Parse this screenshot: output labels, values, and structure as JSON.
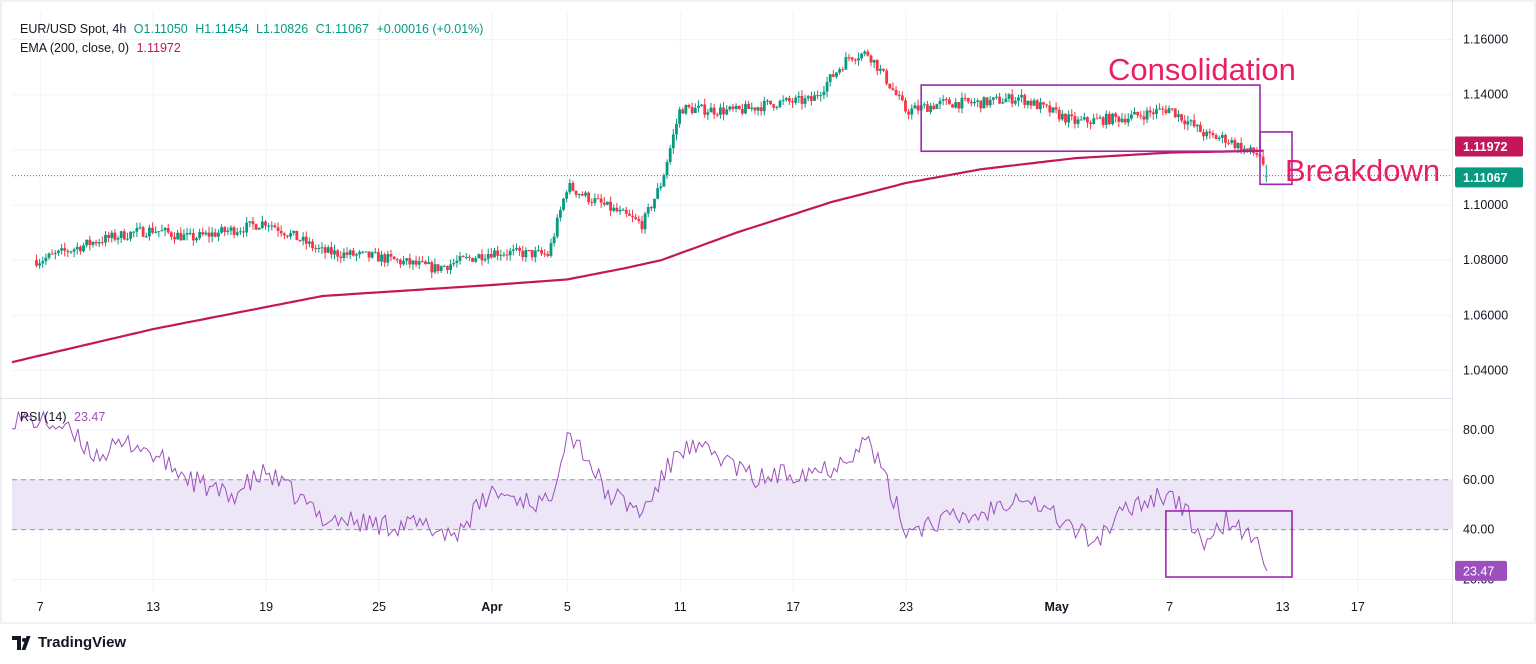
{
  "header": {
    "symbol": "EUR/USD Spot, 4h",
    "open": "O1.11050",
    "high": "H1.11454",
    "low": "L1.10826",
    "close": "C1.11067",
    "change": "+0.00016 (+0.01%)",
    "ema_label": "EMA (200, close, 0)",
    "ema_value": "1.11972",
    "rsi_label": "RSI (14)",
    "rsi_value": "23.47"
  },
  "brand": "TradingView",
  "colors": {
    "up": "#089981",
    "down": "#f23645",
    "ema": "#c2185b",
    "rsi": "#9c4fbd",
    "box": "#9c27b0",
    "annotation": "#e91e63",
    "rsi_band": "#ede6f7"
  },
  "annotations": {
    "consolidation": "Consolidation",
    "breakdown": "Breakdown"
  },
  "chart_data": [
    {
      "type": "candlestick",
      "timeframe": "4h",
      "price_axis": {
        "range": [
          1.03,
          1.17
        ],
        "ticks": [
          "1.16000",
          "1.14000",
          "1.12000",
          "1.10000",
          "1.08000",
          "1.06000",
          "1.04000"
        ],
        "tick_values": [
          1.16,
          1.14,
          1.12,
          1.1,
          1.08,
          1.06,
          1.04
        ]
      },
      "x_ticks": [
        "7",
        "13",
        "19",
        "25",
        "Apr",
        "5",
        "11",
        "17",
        "23",
        "May",
        "7",
        "13",
        "17"
      ],
      "x_tick_days": [
        0,
        6,
        12,
        18,
        24,
        28,
        34,
        40,
        46,
        54,
        60,
        66,
        70
      ],
      "last_bar_day": 65.2,
      "x_range_days": [
        -1.5,
        75
      ],
      "closes_keypoints": [
        [
          0,
          1.08
        ],
        [
          3,
          1.087
        ],
        [
          5,
          1.09
        ],
        [
          6,
          1.091
        ],
        [
          8,
          1.088
        ],
        [
          11,
          1.092
        ],
        [
          12,
          1.094
        ],
        [
          15,
          1.083
        ],
        [
          18,
          1.081
        ],
        [
          21,
          1.077
        ],
        [
          24,
          1.083
        ],
        [
          27,
          1.082
        ],
        [
          28,
          1.107
        ],
        [
          29,
          1.103
        ],
        [
          32,
          1.093
        ],
        [
          33,
          1.108
        ],
        [
          34,
          1.135
        ],
        [
          37,
          1.134
        ],
        [
          39,
          1.137
        ],
        [
          41,
          1.138
        ],
        [
          43,
          1.154
        ],
        [
          44,
          1.155
        ],
        [
          45,
          1.145
        ],
        [
          46,
          1.134
        ],
        [
          48,
          1.137
        ],
        [
          50,
          1.137
        ],
        [
          52,
          1.139
        ],
        [
          55,
          1.13
        ],
        [
          58,
          1.132
        ],
        [
          60,
          1.135
        ],
        [
          62,
          1.125
        ],
        [
          63,
          1.124
        ],
        [
          64,
          1.12
        ],
        [
          64.8,
          1.118
        ],
        [
          65.2,
          1.1107
        ]
      ],
      "last_price_label": "1.11067",
      "ema": {
        "name": "EMA (200, close, 0)",
        "keypoints": [
          [
            -1.5,
            1.043
          ],
          [
            6,
            1.055
          ],
          [
            15,
            1.067
          ],
          [
            24,
            1.071
          ],
          [
            28,
            1.073
          ],
          [
            31,
            1.077
          ],
          [
            33,
            1.08
          ],
          [
            37,
            1.09
          ],
          [
            42,
            1.101
          ],
          [
            46,
            1.108
          ],
          [
            50,
            1.113
          ],
          [
            55,
            1.117
          ],
          [
            60,
            1.119
          ],
          [
            65.2,
            1.11972
          ]
        ],
        "last_label": "1.11972"
      }
    },
    {
      "type": "line",
      "name": "RSI (14)",
      "y_range": [
        15,
        92
      ],
      "ticks": [
        "80.00",
        "60.00",
        "40.00",
        "20.00"
      ],
      "tick_values": [
        80,
        60,
        40,
        20
      ],
      "band": [
        40,
        60
      ],
      "keypoints": [
        [
          -1.5,
          85
        ],
        [
          1,
          82
        ],
        [
          3,
          70
        ],
        [
          5,
          75
        ],
        [
          8,
          60
        ],
        [
          10,
          53
        ],
        [
          12,
          63
        ],
        [
          15,
          45
        ],
        [
          18,
          42
        ],
        [
          20,
          42
        ],
        [
          22,
          38
        ],
        [
          24,
          55
        ],
        [
          27,
          50
        ],
        [
          28,
          80
        ],
        [
          29,
          70
        ],
        [
          30,
          55
        ],
        [
          32,
          47
        ],
        [
          34,
          73
        ],
        [
          36,
          70
        ],
        [
          38,
          60
        ],
        [
          40,
          63
        ],
        [
          42,
          65
        ],
        [
          44,
          76
        ],
        [
          46,
          40
        ],
        [
          48,
          44
        ],
        [
          50,
          46
        ],
        [
          52,
          55
        ],
        [
          54,
          45
        ],
        [
          56,
          35
        ],
        [
          58,
          50
        ],
        [
          60,
          55
        ],
        [
          61,
          45
        ],
        [
          62,
          33
        ],
        [
          63,
          44
        ],
        [
          64,
          38
        ],
        [
          64.6,
          35
        ],
        [
          65.2,
          23.47
        ]
      ],
      "last_label": "23.47"
    }
  ]
}
